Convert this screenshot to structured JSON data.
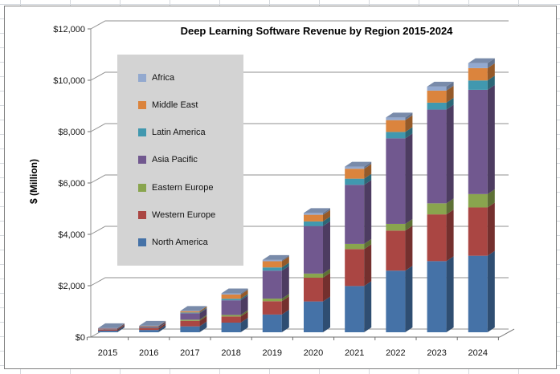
{
  "chart_data": {
    "type": "bar",
    "subtype": "stacked-column-3d",
    "title": "Deep Learning Software Revenue by Region 2015-2024",
    "xlabel": "",
    "ylabel": "$ (Million)",
    "ylim": [
      0,
      12000
    ],
    "grid": true,
    "categories": [
      "2015",
      "2016",
      "2017",
      "2018",
      "2019",
      "2020",
      "2021",
      "2022",
      "2023",
      "2024"
    ],
    "series": [
      {
        "name": "North America",
        "color": "#4572A7",
        "values": [
          60,
          90,
          230,
          375,
          690,
          1200,
          1800,
          2400,
          2770,
          2980
        ]
      },
      {
        "name": "Western Europe",
        "color": "#AA4643",
        "values": [
          45,
          70,
          215,
          240,
          520,
          925,
          1440,
          1560,
          1820,
          1880
        ]
      },
      {
        "name": "Eastern Europe",
        "color": "#89A54E",
        "values": [
          8,
          12,
          45,
          60,
          100,
          160,
          200,
          260,
          430,
          520
        ]
      },
      {
        "name": "Asia Pacific",
        "color": "#71588F",
        "values": [
          30,
          55,
          250,
          570,
          1090,
          1850,
          2300,
          3330,
          3650,
          4060
        ]
      },
      {
        "name": "Latin America",
        "color": "#4198AF",
        "values": [
          5,
          8,
          30,
          60,
          125,
          180,
          240,
          250,
          270,
          365
        ]
      },
      {
        "name": "Middle East",
        "color": "#DB843D",
        "values": [
          10,
          15,
          50,
          165,
          240,
          260,
          385,
          460,
          470,
          480
        ]
      },
      {
        "name": "Africa",
        "color": "#93A9CF",
        "values": [
          2,
          4,
          12,
          45,
          50,
          70,
          85,
          105,
          155,
          195
        ]
      }
    ],
    "y_ticks": [
      {
        "value": 0,
        "label": "$0"
      },
      {
        "value": 2000,
        "label": "$2,000"
      },
      {
        "value": 4000,
        "label": "$4,000"
      },
      {
        "value": 6000,
        "label": "$6,000"
      },
      {
        "value": 8000,
        "label": "$8,000"
      },
      {
        "value": 10000,
        "label": "$10,000"
      },
      {
        "value": 12000,
        "label": "$12,000"
      }
    ],
    "legend": {
      "position": "left-overlay",
      "background": "#d3d3d3",
      "order_top_to_bottom": [
        "Africa",
        "Middle East",
        "Latin America",
        "Asia Pacific",
        "Eastern Europe",
        "Western Europe",
        "North America"
      ]
    },
    "colors": {
      "gridline": "#8f8f8f",
      "axis": "#6e6e6e",
      "chart_border": "#7f7f7f",
      "plot_background": "#ffffff"
    }
  }
}
